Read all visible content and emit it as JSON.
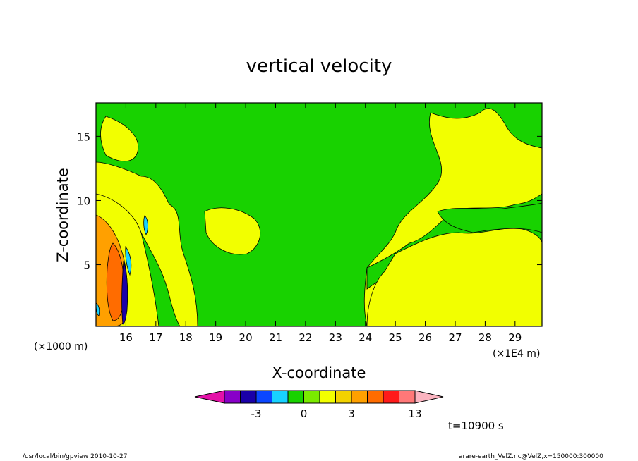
{
  "chart_data": {
    "type": "heatmap",
    "title": "vertical velocity",
    "xlabel": "X-coordinate",
    "ylabel": "Z-coordinate",
    "x_unit_left": "(×1000 m)",
    "x_unit_right": "(×1E4 m)",
    "x_ticks": [
      "16",
      "17",
      "18",
      "19",
      "20",
      "21",
      "22",
      "23",
      "24",
      "25",
      "26",
      "27",
      "28",
      "29"
    ],
    "x_tick_values": [
      16,
      17,
      18,
      19,
      20,
      21,
      22,
      23,
      24,
      25,
      26,
      27,
      28,
      29
    ],
    "xlim": [
      15,
      29.9
    ],
    "y_ticks": [
      "5",
      "10",
      "15"
    ],
    "y_tick_values": [
      5,
      10,
      15
    ],
    "ylim": [
      0.2,
      17.6
    ],
    "time_label": "t=10900 s",
    "colorbar": {
      "levels": [
        -5,
        -4,
        -3,
        -2,
        -1,
        0,
        1,
        2,
        3,
        6,
        9,
        12,
        13
      ],
      "tick_labels": [
        "-3",
        "0",
        "3",
        "13"
      ],
      "tick_values": [
        -3,
        0,
        3,
        13
      ],
      "below_color": "#e411a8",
      "above_color": "#fbb4c0",
      "colors": [
        "#8800c8",
        "#1a00a8",
        "#0a46ff",
        "#18d2ff",
        "#18d200",
        "#7aea00",
        "#f2ff00",
        "#f2d200",
        "#ffa000",
        "#ff6c00",
        "#ff1a1a",
        "#ff7878"
      ]
    },
    "fill_colors": {
      "background": "#f2ff00",
      "near_zero": "#18d200",
      "mid_positive": "#ffa000",
      "strong_positive": "#ff6c00",
      "weak_negative": "#18d2ff",
      "strong_negative": "#1a00a8"
    },
    "grid": false
  },
  "footer": {
    "program": "/usr/local/bin/gpview   2010-10-27",
    "source": "arare-earth_VelZ.nc@VelZ,x=150000:300000"
  }
}
